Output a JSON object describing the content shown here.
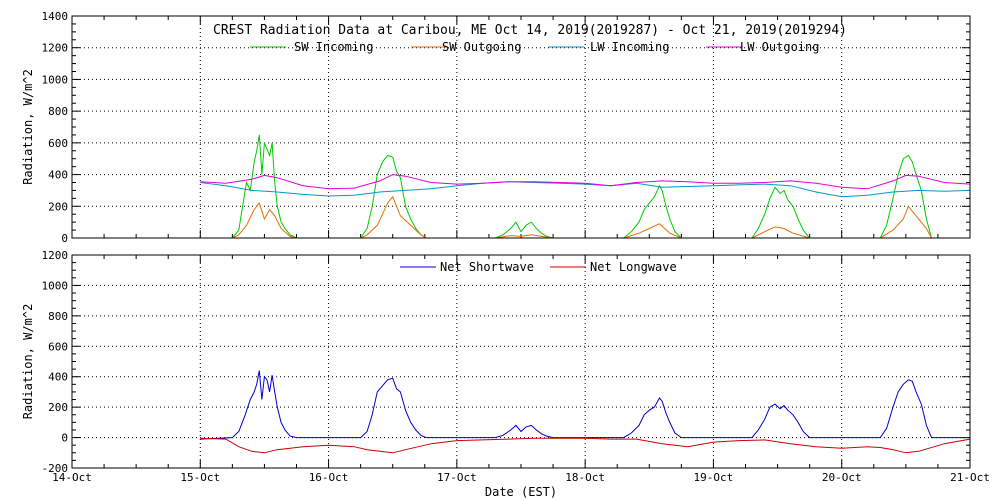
{
  "chart_data": [
    {
      "type": "line",
      "title": "CREST Radiation Data at Caribou, ME   Oct 14, 2019(2019287) - Oct 21, 2019(2019294)",
      "ylabel": "Radiation, W/m^2",
      "xlabel": "",
      "ylim": [
        0,
        1400
      ],
      "yticks": [
        0,
        200,
        400,
        600,
        800,
        1000,
        1200,
        1400
      ],
      "xlim": [
        0,
        7
      ],
      "grid": true,
      "legend_placement": "top",
      "series": [
        {
          "name": "SW Incoming",
          "color": "#00cc00",
          "x": [
            1.25,
            1.3,
            1.33,
            1.36,
            1.39,
            1.42,
            1.44,
            1.46,
            1.48,
            1.5,
            1.52,
            1.54,
            1.56,
            1.58,
            1.6,
            1.63,
            1.66,
            1.7,
            1.75,
            2.25,
            2.3,
            2.34,
            2.38,
            2.42,
            2.46,
            2.5,
            2.53,
            2.56,
            2.6,
            2.64,
            2.68,
            2.72,
            2.76,
            3.3,
            3.36,
            3.42,
            3.46,
            3.5,
            3.54,
            3.58,
            3.62,
            3.66,
            3.7,
            3.75,
            4.3,
            4.36,
            4.42,
            4.46,
            4.5,
            4.54,
            4.58,
            4.6,
            4.63,
            4.66,
            4.7,
            4.75,
            5.3,
            5.35,
            5.4,
            5.44,
            5.48,
            5.52,
            5.55,
            5.58,
            5.62,
            5.66,
            5.7,
            5.75,
            6.3,
            6.35,
            6.4,
            6.44,
            6.48,
            6.52,
            6.55,
            6.58,
            6.62,
            6.66,
            6.7
          ],
          "values": [
            0,
            50,
            200,
            350,
            300,
            480,
            550,
            650,
            400,
            600,
            560,
            520,
            600,
            350,
            200,
            100,
            60,
            20,
            0,
            0,
            60,
            200,
            400,
            480,
            520,
            510,
            420,
            380,
            200,
            120,
            60,
            20,
            0,
            0,
            20,
            60,
            100,
            40,
            80,
            100,
            60,
            30,
            10,
            0,
            0,
            40,
            100,
            180,
            220,
            260,
            330,
            300,
            200,
            120,
            40,
            0,
            0,
            60,
            150,
            250,
            320,
            280,
            300,
            240,
            200,
            120,
            50,
            0,
            0,
            80,
            250,
            400,
            500,
            520,
            480,
            400,
            300,
            120,
            0
          ]
        },
        {
          "name": "SW Outgoing",
          "color": "#e07000",
          "x": [
            1.25,
            1.3,
            1.36,
            1.42,
            1.46,
            1.5,
            1.54,
            1.58,
            1.63,
            1.7,
            1.75,
            2.25,
            2.3,
            2.38,
            2.42,
            2.46,
            2.5,
            2.56,
            2.64,
            2.72,
            2.76,
            3.3,
            3.42,
            3.5,
            3.58,
            3.66,
            3.75,
            4.3,
            4.42,
            4.5,
            4.58,
            4.66,
            4.75,
            5.3,
            5.4,
            5.48,
            5.55,
            5.62,
            5.75,
            6.3,
            6.4,
            6.48,
            6.52,
            6.58,
            6.66,
            6.7
          ],
          "values": [
            0,
            20,
            80,
            180,
            220,
            120,
            180,
            140,
            60,
            10,
            0,
            0,
            20,
            80,
            150,
            220,
            260,
            140,
            80,
            20,
            0,
            0,
            15,
            10,
            20,
            10,
            0,
            0,
            30,
            60,
            90,
            30,
            0,
            0,
            40,
            70,
            60,
            30,
            0,
            0,
            50,
            120,
            200,
            140,
            60,
            0
          ]
        },
        {
          "name": "LW Incoming",
          "color": "#0099cc",
          "x": [
            1.0,
            1.2,
            1.4,
            1.6,
            1.8,
            2.0,
            2.2,
            2.4,
            2.6,
            2.8,
            3.0,
            3.2,
            3.4,
            3.6,
            3.8,
            4.0,
            4.2,
            4.4,
            4.6,
            4.8,
            5.0,
            5.2,
            5.4,
            5.6,
            5.8,
            6.0,
            6.2,
            6.4,
            6.6,
            6.8,
            7.0
          ],
          "values": [
            350,
            330,
            300,
            290,
            275,
            265,
            270,
            290,
            300,
            310,
            330,
            345,
            355,
            350,
            345,
            340,
            330,
            345,
            320,
            325,
            330,
            335,
            340,
            330,
            290,
            260,
            270,
            290,
            300,
            295,
            300
          ]
        },
        {
          "name": "LW Outgoing",
          "color": "#e000e0",
          "x": [
            1.0,
            1.2,
            1.4,
            1.5,
            1.6,
            1.8,
            2.0,
            2.2,
            2.4,
            2.5,
            2.6,
            2.8,
            3.0,
            3.2,
            3.4,
            3.6,
            3.8,
            4.0,
            4.2,
            4.4,
            4.6,
            4.8,
            5.0,
            5.2,
            5.4,
            5.6,
            5.8,
            6.0,
            6.2,
            6.4,
            6.5,
            6.6,
            6.8,
            7.0
          ],
          "values": [
            355,
            345,
            370,
            395,
            380,
            330,
            310,
            315,
            360,
            400,
            390,
            350,
            340,
            345,
            355,
            355,
            350,
            345,
            330,
            350,
            360,
            355,
            345,
            345,
            350,
            360,
            345,
            320,
            310,
            360,
            395,
            390,
            350,
            340
          ]
        }
      ]
    },
    {
      "type": "line",
      "title": "",
      "ylabel": "Radiation, W/m^2",
      "xlabel": "Date (EST)",
      "ylim": [
        -200,
        1200
      ],
      "yticks": [
        -200,
        0,
        200,
        400,
        600,
        800,
        1000,
        1200
      ],
      "xlim": [
        0,
        7
      ],
      "xtick_labels": [
        "14-Oct",
        "15-Oct",
        "16-Oct",
        "17-Oct",
        "18-Oct",
        "19-Oct",
        "20-Oct",
        "21-Oct"
      ],
      "grid": true,
      "legend_placement": "top",
      "series": [
        {
          "name": "Net Shortwave",
          "color": "#0000cc",
          "x": [
            1.0,
            1.25,
            1.3,
            1.35,
            1.39,
            1.42,
            1.44,
            1.46,
            1.48,
            1.5,
            1.52,
            1.54,
            1.56,
            1.58,
            1.6,
            1.63,
            1.66,
            1.7,
            1.75,
            2.25,
            2.3,
            2.34,
            2.38,
            2.42,
            2.46,
            2.5,
            2.53,
            2.56,
            2.6,
            2.64,
            2.68,
            2.72,
            2.76,
            3.3,
            3.36,
            3.42,
            3.46,
            3.5,
            3.54,
            3.58,
            3.62,
            3.66,
            3.7,
            3.75,
            4.3,
            4.36,
            4.42,
            4.46,
            4.5,
            4.54,
            4.58,
            4.6,
            4.63,
            4.66,
            4.7,
            4.75,
            5.3,
            5.35,
            5.4,
            5.44,
            5.48,
            5.52,
            5.55,
            5.58,
            5.62,
            5.66,
            5.7,
            5.75,
            6.3,
            6.35,
            6.4,
            6.44,
            6.48,
            6.52,
            6.55,
            6.58,
            6.62,
            6.66,
            6.7,
            7.0
          ],
          "values": [
            -10,
            0,
            40,
            150,
            250,
            300,
            350,
            440,
            250,
            400,
            380,
            300,
            410,
            300,
            200,
            100,
            50,
            10,
            0,
            0,
            40,
            150,
            300,
            340,
            380,
            390,
            320,
            300,
            180,
            100,
            50,
            15,
            0,
            0,
            15,
            50,
            80,
            40,
            70,
            80,
            50,
            25,
            10,
            0,
            0,
            30,
            80,
            150,
            180,
            200,
            260,
            240,
            160,
            100,
            30,
            0,
            0,
            50,
            120,
            200,
            220,
            190,
            210,
            180,
            150,
            100,
            40,
            0,
            0,
            60,
            200,
            300,
            350,
            380,
            370,
            300,
            220,
            80,
            0,
            0
          ]
        },
        {
          "name": "Net Longwave",
          "color": "#cc0000",
          "x": [
            1.0,
            1.2,
            1.3,
            1.4,
            1.5,
            1.6,
            1.8,
            2.0,
            2.2,
            2.3,
            2.4,
            2.5,
            2.6,
            2.8,
            3.0,
            3.2,
            3.4,
            3.6,
            3.8,
            4.0,
            4.2,
            4.4,
            4.6,
            4.8,
            5.0,
            5.2,
            5.4,
            5.6,
            5.8,
            6.0,
            6.2,
            6.3,
            6.4,
            6.5,
            6.6,
            6.8,
            7.0
          ],
          "values": [
            -5,
            -10,
            -60,
            -90,
            -100,
            -80,
            -60,
            -50,
            -60,
            -80,
            -90,
            -100,
            -80,
            -40,
            -20,
            -15,
            -10,
            -5,
            -5,
            -5,
            -10,
            -10,
            -40,
            -60,
            -30,
            -20,
            -15,
            -40,
            -60,
            -70,
            -60,
            -65,
            -80,
            -100,
            -90,
            -40,
            -10
          ]
        }
      ]
    }
  ]
}
